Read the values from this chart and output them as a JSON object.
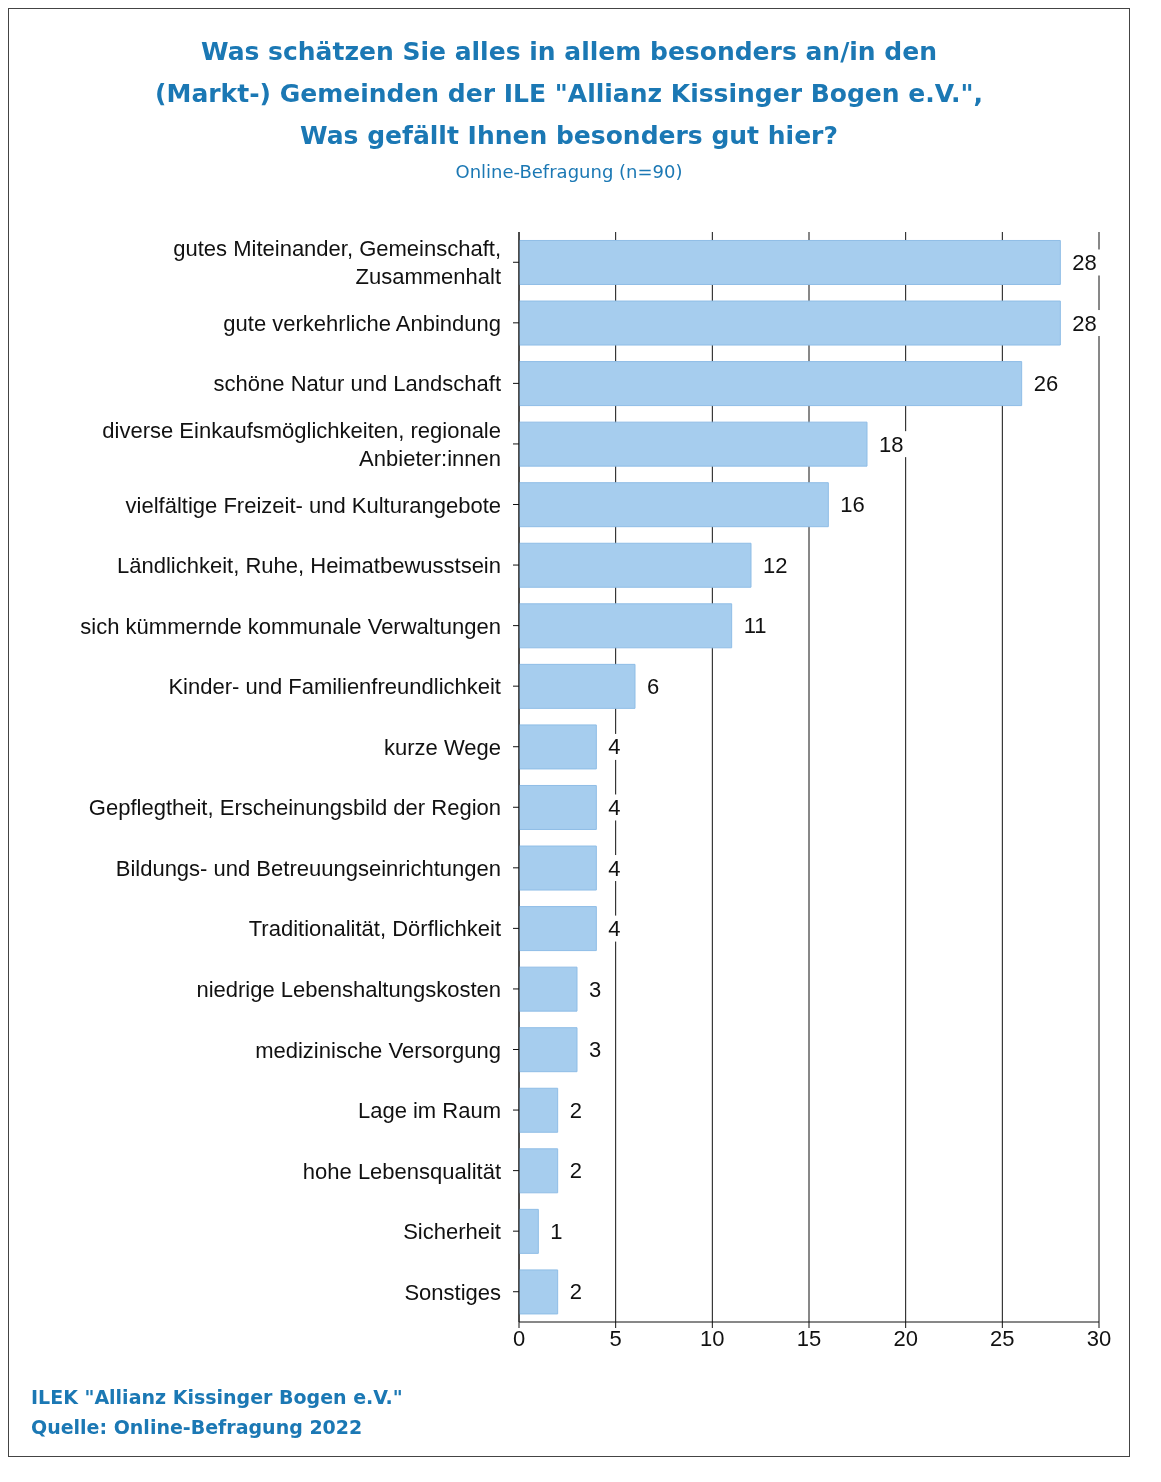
{
  "chart_data": {
    "type": "bar",
    "orientation": "horizontal",
    "title": "Was schätzen Sie alles in allem besonders an/in den (Markt-) Gemeinden der ILE \"Allianz Kissinger Bogen e.V.\", Was gefällt Ihnen besonders gut hier?",
    "subtitle": "Online-Befragung (n=90)",
    "categories": [
      "gutes Miteinander, Gemeinschaft, Zusammenhalt",
      "gute verkehrliche Anbindung",
      "schöne Natur und Landschaft",
      "diverse Einkaufsmöglichkeiten, regionale Anbieter:innen",
      "vielfältige Freizeit- und Kulturangebote",
      "Ländlichkeit, Ruhe, Heimatbewusstsein",
      "sich kümmernde kommunale Verwaltungen",
      "Kinder- und Familienfreundlichkeit",
      "kurze Wege",
      "Gepflegtheit, Erscheinungsbild der Region",
      "Bildungs- und Betreuungseinrichtungen",
      "Traditionalität, Dörflichkeit",
      "niedrige Lebenshaltungskosten",
      "medizinische Versorgung",
      "Lage im Raum",
      "hohe Lebensqualität",
      "Sicherheit",
      "Sonstiges"
    ],
    "values": [
      28,
      28,
      26,
      18,
      16,
      12,
      11,
      6,
      4,
      4,
      4,
      4,
      3,
      3,
      2,
      2,
      1,
      2
    ],
    "color": "#a6cdee",
    "xlim": [
      0,
      30
    ],
    "xticks": [
      0,
      5,
      10,
      15,
      20,
      25,
      30
    ],
    "grid": "x",
    "data_labels": true,
    "annotations": [
      "ILEK \"Allianz Kissinger Bogen e.V.\"",
      "Quelle: Online-Befragung 2022"
    ]
  }
}
